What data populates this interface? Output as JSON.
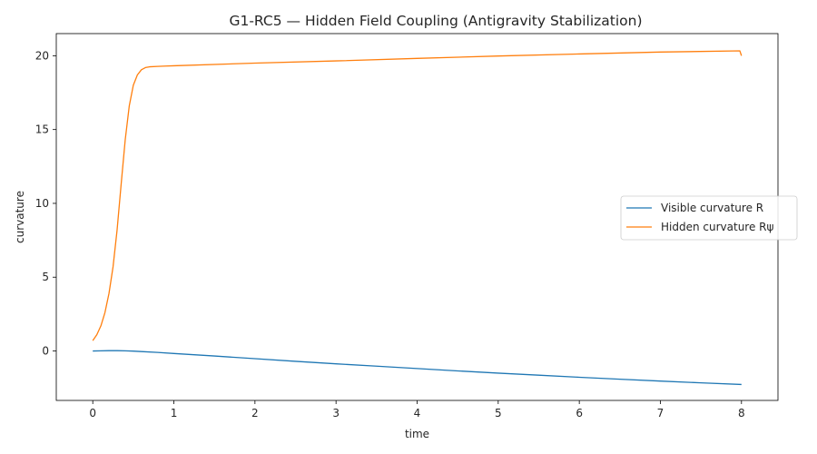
{
  "chart_data": {
    "type": "line",
    "title": "G1-RC5 — Hidden Field Coupling (Antigravity Stabilization)",
    "xlabel": "time",
    "ylabel": "curvature",
    "xlim": [
      -0.45,
      8.45
    ],
    "ylim": [
      -3.35,
      21.5
    ],
    "xticks": [
      0,
      1,
      2,
      3,
      4,
      5,
      6,
      7,
      8
    ],
    "yticks": [
      0,
      5,
      10,
      15,
      20
    ],
    "grid": false,
    "legend_position": "center-right",
    "series": [
      {
        "name": "Visible curvature R",
        "color": "#1f77b4",
        "x": [
          0,
          0.1,
          0.2,
          0.3,
          0.4,
          0.5,
          0.6,
          0.8,
          1,
          1.5,
          2,
          2.5,
          3,
          3.5,
          4,
          4.5,
          5,
          5.5,
          6,
          6.5,
          7,
          7.5,
          8
        ],
        "y": [
          0,
          0.01,
          0.02,
          0.02,
          0.01,
          -0.01,
          -0.04,
          -0.1,
          -0.17,
          -0.34,
          -0.52,
          -0.7,
          -0.87,
          -1.03,
          -1.19,
          -1.35,
          -1.5,
          -1.64,
          -1.78,
          -1.91,
          -2.04,
          -2.16,
          -2.27
        ]
      },
      {
        "name": "Hidden curvature Rψ",
        "color": "#ff7f0e",
        "x": [
          0,
          0.05,
          0.1,
          0.15,
          0.2,
          0.25,
          0.3,
          0.35,
          0.4,
          0.45,
          0.5,
          0.55,
          0.6,
          0.65,
          0.7,
          0.8,
          0.9,
          1,
          2,
          3,
          4,
          5,
          6,
          7,
          7.98,
          8.0
        ],
        "y": [
          0.7,
          1.1,
          1.7,
          2.6,
          3.9,
          5.7,
          8.2,
          11.3,
          14.3,
          16.6,
          18.0,
          18.7,
          19.05,
          19.2,
          19.25,
          19.28,
          19.3,
          19.32,
          19.5,
          19.65,
          19.82,
          19.98,
          20.12,
          20.25,
          20.33,
          20.0
        ]
      }
    ]
  }
}
